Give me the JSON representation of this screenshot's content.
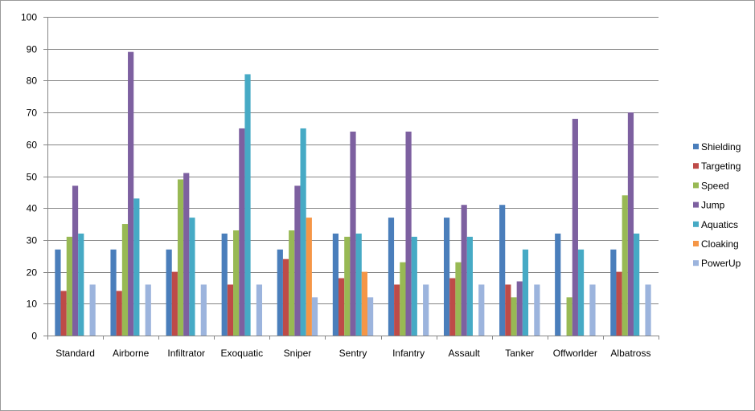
{
  "chart_data": {
    "type": "bar",
    "title": "",
    "xlabel": "",
    "ylabel": "",
    "ylim": [
      0,
      100
    ],
    "yticks": [
      0,
      10,
      20,
      30,
      40,
      50,
      60,
      70,
      80,
      90,
      100
    ],
    "grid": true,
    "legend_position": "right",
    "categories": [
      "Standard",
      "Airborne",
      "Infiltrator",
      "Exoquatic",
      "Sniper",
      "Sentry",
      "Infantry",
      "Assault",
      "Tanker",
      "Offworlder",
      "Albatross"
    ],
    "series": [
      {
        "name": "Shielding",
        "color": "#4a7ebb",
        "values": [
          27,
          27,
          27,
          32,
          27,
          32,
          37,
          37,
          41,
          32,
          27
        ]
      },
      {
        "name": "Targeting",
        "color": "#be4b48",
        "values": [
          14,
          14,
          20,
          16,
          24,
          18,
          16,
          18,
          16,
          0,
          20
        ]
      },
      {
        "name": "Speed",
        "color": "#98b954",
        "values": [
          31,
          35,
          49,
          33,
          33,
          31,
          23,
          23,
          12,
          12,
          44
        ]
      },
      {
        "name": "Jump",
        "color": "#7d60a0",
        "values": [
          47,
          89,
          51,
          65,
          47,
          64,
          64,
          41,
          17,
          68,
          70
        ]
      },
      {
        "name": "Aquatics",
        "color": "#46aac5",
        "values": [
          32,
          43,
          37,
          82,
          65,
          32,
          31,
          31,
          27,
          27,
          32
        ]
      },
      {
        "name": "Cloaking",
        "color": "#f59646",
        "values": [
          0,
          0,
          0,
          0,
          37,
          20,
          0,
          0,
          0,
          0,
          0
        ]
      },
      {
        "name": "PowerUp",
        "color": "#9cb4dd",
        "values": [
          16,
          16,
          16,
          16,
          12,
          12,
          16,
          16,
          16,
          16,
          16
        ]
      }
    ]
  }
}
